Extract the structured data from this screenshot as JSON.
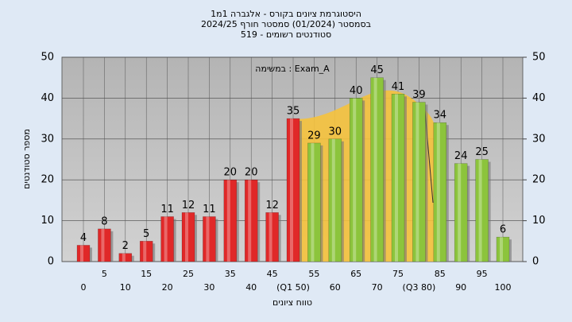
{
  "chart_data": {
    "type": "bar",
    "title": [
      "היסטוגרמת ציונים בקורס - אלגברה 1מ1",
      "בסמסטר  (01/2024)  סמסטר חורף 2024/25",
      "סטודנטים רשומים - 519"
    ],
    "annotation": "במשימה : Exam_A",
    "xlabel": "טווח ציונים",
    "ylabel": "מספר סטודנטים",
    "categories": [
      "0",
      "5",
      "10",
      "15",
      "20",
      "25",
      "30",
      "35",
      "40",
      "45",
      "(Q1 50)",
      "55",
      "60",
      "65",
      "70",
      "75",
      "(Q3 80)",
      "85",
      "90",
      "95",
      "100"
    ],
    "values": [
      4,
      8,
      2,
      5,
      11,
      12,
      11,
      20,
      20,
      12,
      35,
      29,
      30,
      40,
      45,
      41,
      39,
      34,
      24,
      25,
      6
    ],
    "colors": [
      "#e02828",
      "#e02828",
      "#e02828",
      "#e02828",
      "#e02828",
      "#e02828",
      "#e02828",
      "#e02828",
      "#e02828",
      "#e02828",
      "#e02828",
      "#8cc43c",
      "#8cc43c",
      "#8cc43c",
      "#8cc43c",
      "#8cc43c",
      "#8cc43c",
      "#8cc43c",
      "#8cc43c",
      "#8cc43c",
      "#8cc43c"
    ],
    "ylim": [
      0,
      50
    ],
    "yticks": [
      0,
      10,
      20,
      30,
      40,
      50
    ],
    "y2lim": [
      0,
      50
    ],
    "y2ticks": [
      0,
      10,
      20,
      30,
      40,
      50
    ],
    "grid": true
  }
}
